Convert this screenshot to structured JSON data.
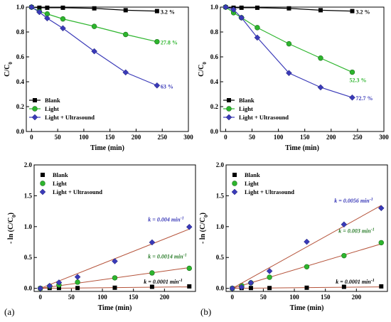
{
  "colors": {
    "blank": "#000000",
    "light": "#2db52d",
    "lus": "#3a3ab8",
    "fit": "#b5533a",
    "light_fit_text": "#2a7d2a",
    "light_end_text": "#2db52d"
  },
  "panel_labels": [
    "(a)",
    "(b)"
  ],
  "chart_data": [
    {
      "type": "line",
      "panel": "a-top",
      "xlabel": "Time (min)",
      "ylabel_main": "C/C",
      "ylabel_sub": "0",
      "xlim": [
        -10,
        300
      ],
      "ylim": [
        0,
        1.0
      ],
      "xticks": [
        0,
        50,
        100,
        150,
        200,
        250,
        300
      ],
      "yticks": [
        0,
        0.2,
        0.4,
        0.6,
        0.8,
        1.0
      ],
      "ytick_labels": [
        "0.0",
        "0.2",
        "0.4",
        "0.6",
        "0.8",
        "1.0"
      ],
      "legend": "bottom-left",
      "series": [
        {
          "name": "Blank",
          "marker": "square",
          "color_key": "blank",
          "x": [
            0,
            15,
            30,
            60,
            120,
            180,
            240
          ],
          "y": [
            1.0,
            0.995,
            0.995,
            0.995,
            0.99,
            0.975,
            0.968
          ],
          "end_label": "3.2 %"
        },
        {
          "name": "Light",
          "marker": "circle",
          "color_key": "light",
          "x": [
            0,
            15,
            30,
            60,
            120,
            180,
            240
          ],
          "y": [
            1.0,
            0.965,
            0.945,
            0.905,
            0.845,
            0.78,
            0.722
          ],
          "end_label": "27.8 %"
        },
        {
          "name": "Light + Ultrasound",
          "marker": "diamond",
          "color_key": "lus",
          "x": [
            0,
            15,
            30,
            60,
            120,
            180,
            240
          ],
          "y": [
            1.0,
            0.96,
            0.91,
            0.83,
            0.645,
            0.475,
            0.37
          ],
          "end_label": "63 %"
        }
      ]
    },
    {
      "type": "line",
      "panel": "b-top",
      "xlabel": "Time (min)",
      "ylabel_main": "C/C",
      "ylabel_sub": "0",
      "xlim": [
        -10,
        300
      ],
      "ylim": [
        0,
        1.0
      ],
      "xticks": [
        0,
        50,
        100,
        150,
        200,
        250,
        300
      ],
      "yticks": [
        0,
        0.2,
        0.4,
        0.6,
        0.8,
        1.0
      ],
      "ytick_labels": [
        "0.0",
        "0.2",
        "0.4",
        "0.6",
        "0.8",
        "1.0"
      ],
      "legend": "bottom-left",
      "series": [
        {
          "name": "Blank",
          "marker": "square",
          "color_key": "blank",
          "x": [
            0,
            15,
            30,
            60,
            120,
            180,
            240
          ],
          "y": [
            1.0,
            0.995,
            0.995,
            0.995,
            0.99,
            0.975,
            0.968
          ],
          "end_label": "3.2 %"
        },
        {
          "name": "Light",
          "marker": "circle",
          "color_key": "light",
          "x": [
            0,
            15,
            30,
            60,
            120,
            180,
            240
          ],
          "y": [
            1.0,
            0.955,
            0.915,
            0.835,
            0.705,
            0.59,
            0.477
          ],
          "end_label": "52.3 %"
        },
        {
          "name": "Light + Ultrasound",
          "marker": "diamond",
          "color_key": "lus",
          "x": [
            0,
            15,
            30,
            60,
            120,
            180,
            240
          ],
          "y": [
            1.0,
            0.98,
            0.915,
            0.755,
            0.47,
            0.355,
            0.273
          ],
          "end_label": "72.7 %"
        }
      ]
    },
    {
      "type": "scatter",
      "panel": "a-bottom",
      "xlabel": "Time (min)",
      "ylabel_main": "- ln (C/C",
      "ylabel_sub": "0",
      "ylabel_end": ")",
      "xlim": [
        -10,
        250
      ],
      "ylim": [
        -0.05,
        2.0
      ],
      "xticks": [
        0,
        50,
        100,
        150,
        200
      ],
      "yticks": [
        0,
        0.5,
        1.0,
        1.5,
        2.0
      ],
      "ytick_labels": [
        "0.0",
        "0.5",
        "1.0",
        "1.5",
        "2.0"
      ],
      "legend": "top-left",
      "series": [
        {
          "name": "Blank",
          "marker": "square",
          "color_key": "blank",
          "x": [
            0,
            15,
            30,
            60,
            120,
            180,
            240
          ],
          "y": [
            0,
            0.005,
            0.005,
            0.005,
            0.01,
            0.025,
            0.032
          ],
          "fit_slope": 0.0001,
          "fit_label": "k = 0.0001 min"
        },
        {
          "name": "Light",
          "marker": "circle",
          "color_key": "light",
          "x": [
            0,
            15,
            30,
            60,
            120,
            180,
            240
          ],
          "y": [
            0,
            0.035,
            0.055,
            0.1,
            0.17,
            0.25,
            0.325
          ],
          "fit_slope": 0.0014,
          "fit_label": "k = 0.0014 min"
        },
        {
          "name": "Light + Ultrasound",
          "marker": "diamond",
          "color_key": "lus",
          "x": [
            0,
            15,
            30,
            60,
            120,
            180,
            240
          ],
          "y": [
            0,
            0.04,
            0.095,
            0.185,
            0.44,
            0.745,
            0.995
          ],
          "fit_slope": 0.004,
          "fit_label": "k = 0.004 min"
        }
      ]
    },
    {
      "type": "scatter",
      "panel": "b-bottom",
      "xlabel": "Time (min)",
      "ylabel_main": "- ln (C/C",
      "ylabel_sub": "0",
      "ylabel_end": ")",
      "xlim": [
        -10,
        250
      ],
      "ylim": [
        -0.05,
        2.0
      ],
      "xticks": [
        0,
        50,
        100,
        150,
        200
      ],
      "yticks": [
        0,
        0.5,
        1.0,
        1.5,
        2.0
      ],
      "ytick_labels": [
        "0.0",
        "0.5",
        "1.0",
        "1.5",
        "2.0"
      ],
      "legend": "top-left",
      "series": [
        {
          "name": "Blank",
          "marker": "square",
          "color_key": "blank",
          "x": [
            0,
            15,
            30,
            60,
            120,
            180,
            240
          ],
          "y": [
            0,
            0.005,
            0.005,
            0.005,
            0.01,
            0.025,
            0.032
          ],
          "fit_slope": 0.0001,
          "fit_label": "k = 0.0001 min"
        },
        {
          "name": "Light",
          "marker": "circle",
          "color_key": "light",
          "x": [
            0,
            15,
            30,
            60,
            120,
            180,
            240
          ],
          "y": [
            0,
            0.045,
            0.09,
            0.18,
            0.35,
            0.53,
            0.74
          ],
          "fit_slope": 0.003,
          "fit_label": "k = 0.003 min"
        },
        {
          "name": "Light + Ultrasound",
          "marker": "diamond",
          "color_key": "lus",
          "x": [
            0,
            15,
            30,
            60,
            120,
            180,
            240
          ],
          "y": [
            0,
            0.02,
            0.09,
            0.28,
            0.755,
            1.035,
            1.3
          ],
          "fit_slope": 0.0056,
          "fit_label": "k = 0.0056 min"
        }
      ]
    }
  ],
  "fit_label_exponent": "-1"
}
